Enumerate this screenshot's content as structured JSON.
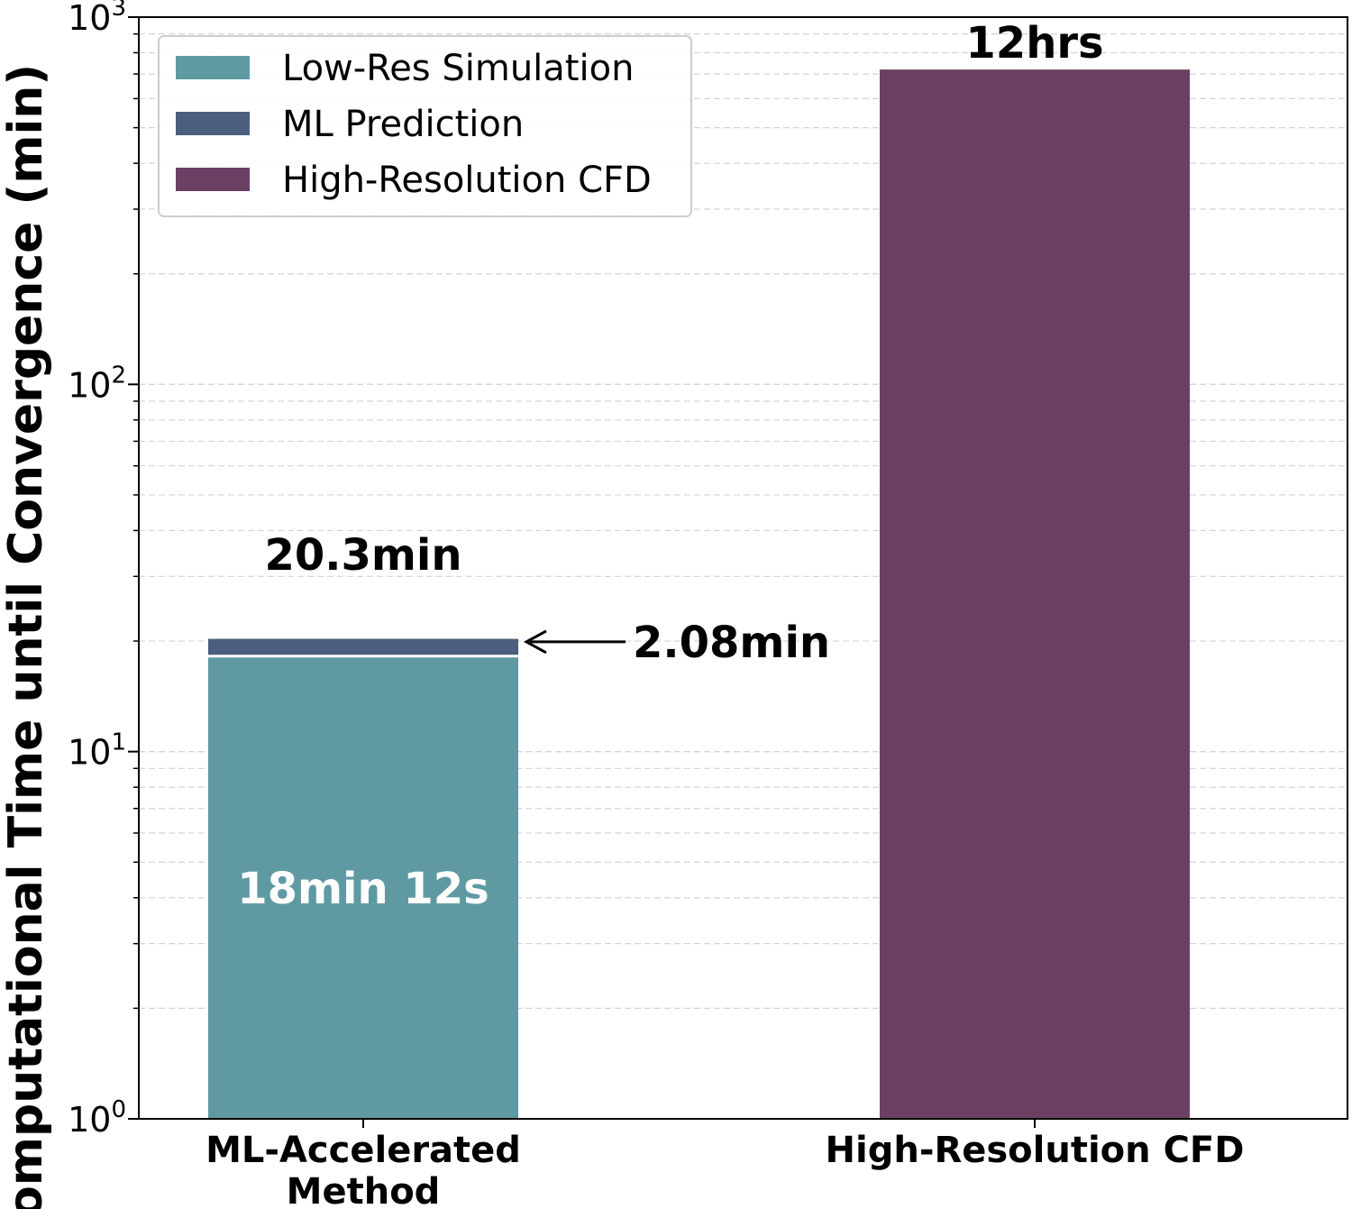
{
  "chart_data": {
    "type": "bar",
    "stacked": true,
    "scale": "log",
    "ylim": [
      1,
      1000
    ],
    "grid": "horizontal-dashed",
    "ylabel": "Computational Time until Convergence (min)",
    "y_ticks": [
      {
        "value": 1,
        "base": "10",
        "exp": "0"
      },
      {
        "value": 10,
        "base": "10",
        "exp": "1"
      },
      {
        "value": 100,
        "base": "10",
        "exp": "2"
      },
      {
        "value": 1000,
        "base": "10",
        "exp": "3"
      }
    ],
    "categories": [
      {
        "lines": [
          "ML-Accelerated",
          "Method"
        ]
      },
      {
        "lines": [
          "High-Resolution CFD"
        ]
      }
    ],
    "series": [
      {
        "name": "Low-Res Simulation",
        "color": "#5f9aa3",
        "values": [
          18.2,
          null
        ]
      },
      {
        "name": "ML Prediction",
        "color": "#4b5e7d",
        "values": [
          2.08,
          null
        ]
      },
      {
        "name": "High-Resolution CFD",
        "color": "#6a4163",
        "values": [
          null,
          720
        ]
      }
    ],
    "legend_position": "top-left",
    "annotations": {
      "inside_low_res": "18min 12s",
      "ml_prediction": "2.08min",
      "total_ml": "20.3min",
      "total_cfd": "12hrs"
    }
  }
}
